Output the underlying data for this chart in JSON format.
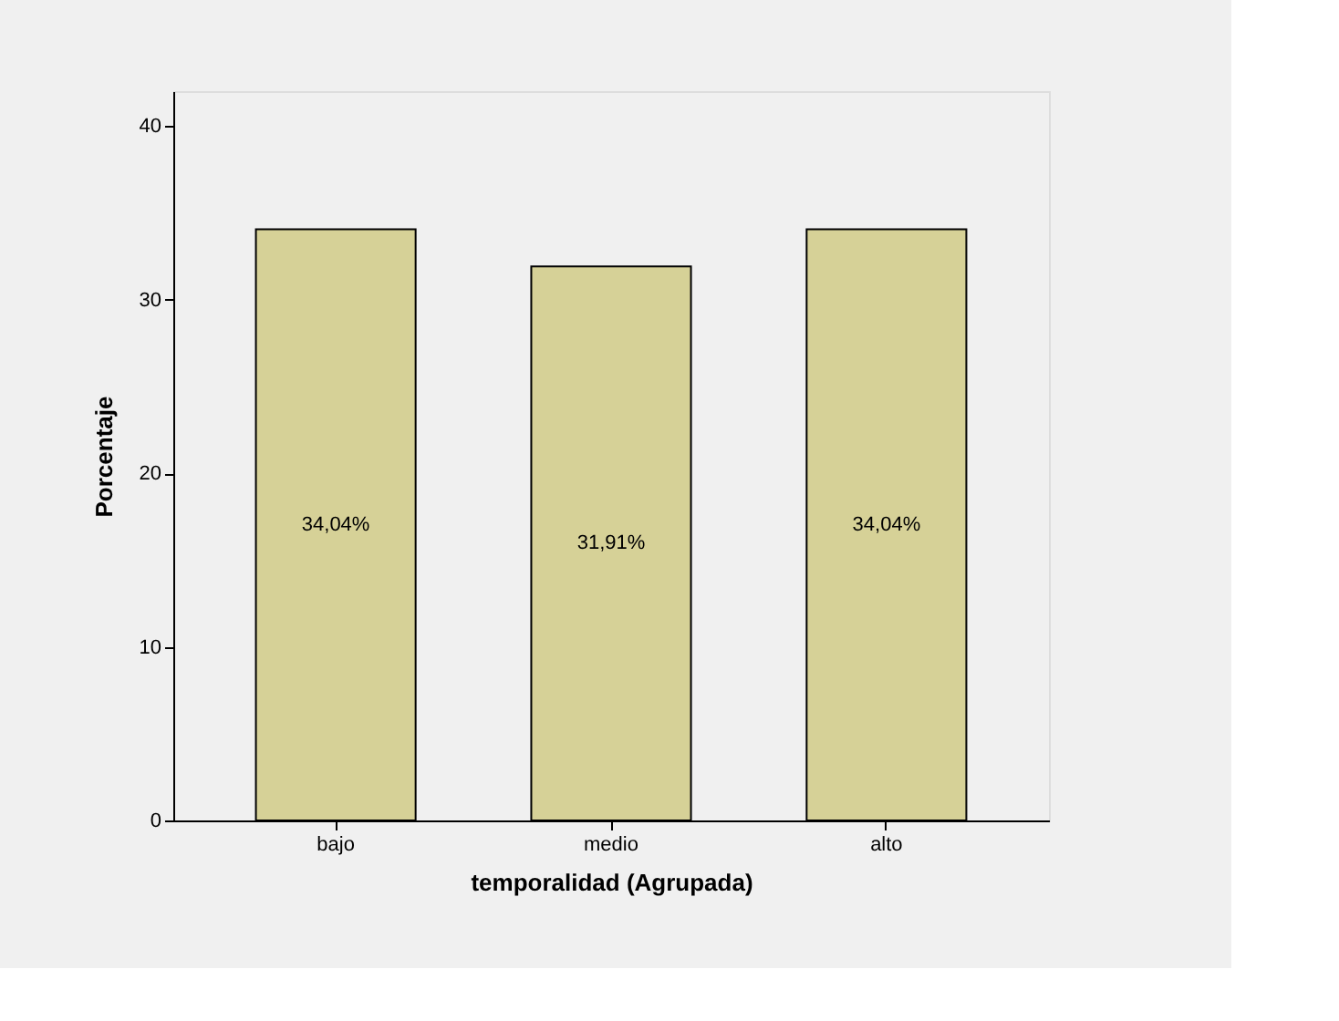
{
  "chart_data": {
    "type": "bar",
    "xlabel": "temporalidad (Agrupada)",
    "ylabel": "Porcentaje",
    "categories": [
      "bajo",
      "medio",
      "alto"
    ],
    "values": [
      34.04,
      31.91,
      34.04
    ],
    "value_labels": [
      "34,04%",
      "31,91%",
      "34,04%"
    ],
    "color": "#d6d197",
    "ylim": [
      0,
      42
    ],
    "yticks": [
      0,
      10,
      20,
      30,
      40
    ],
    "grid": false
  }
}
